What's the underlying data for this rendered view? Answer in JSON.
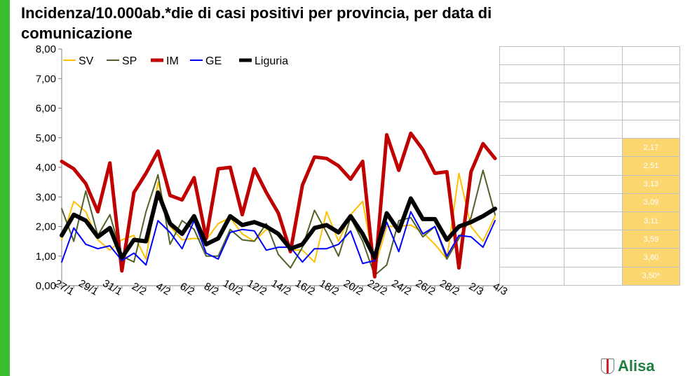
{
  "title": "Incidenza/10.000ab.*die di casi positivi per provincia, per data di comunicazione",
  "logo_text": "Alisa",
  "chart_data": {
    "type": "line",
    "title": "",
    "xlabel": "",
    "ylabel": "",
    "ylim": [
      0,
      8
    ],
    "yticks": [
      "0,00",
      "1,00",
      "2,00",
      "3,00",
      "4,00",
      "5,00",
      "6,00",
      "7,00",
      "8,00"
    ],
    "grid": false,
    "legend_position": "top-left",
    "x_tick_labels": [
      "27/1",
      "29/1",
      "31/1",
      "2/2",
      "4/2",
      "6/2",
      "8/2",
      "10/2",
      "12/2",
      "14/2",
      "16/2",
      "18/2",
      "20/2",
      "22/2",
      "24/2",
      "26/2",
      "28/2",
      "2/3",
      "4/3"
    ],
    "x": [
      "27/1",
      "28/1",
      "29/1",
      "30/1",
      "31/1",
      "1/2",
      "2/2",
      "3/2",
      "4/2",
      "5/2",
      "6/2",
      "7/2",
      "8/2",
      "9/2",
      "10/2",
      "11/2",
      "12/2",
      "13/2",
      "14/2",
      "15/2",
      "16/2",
      "17/2",
      "18/2",
      "19/2",
      "20/2",
      "21/2",
      "22/2",
      "23/2",
      "24/2",
      "25/2",
      "26/2",
      "27/2",
      "28/2",
      "1/3",
      "2/3",
      "3/3",
      "4/3"
    ],
    "series": [
      {
        "name": "SV",
        "color": "#ffc000",
        "width": 2,
        "values": [
          1.55,
          2.85,
          2.5,
          1.55,
          1.2,
          1.55,
          1.7,
          0.9,
          3.5,
          2.0,
          1.55,
          1.6,
          1.55,
          2.1,
          2.3,
          1.75,
          1.5,
          1.9,
          1.8,
          1.2,
          1.2,
          0.8,
          2.5,
          1.5,
          2.4,
          2.85,
          0.6,
          2.0,
          2.0,
          2.05,
          1.8,
          1.4,
          0.9,
          3.8,
          2.0,
          1.5,
          2.35
        ]
      },
      {
        "name": "SP",
        "color": "#4f6228",
        "width": 2,
        "values": [
          2.6,
          1.5,
          3.2,
          1.7,
          2.4,
          1.0,
          0.8,
          2.5,
          3.75,
          1.4,
          2.2,
          1.9,
          1.0,
          1.0,
          1.9,
          1.55,
          1.5,
          2.1,
          1.05,
          0.6,
          1.3,
          2.55,
          1.8,
          1.0,
          2.3,
          1.5,
          0.35,
          0.7,
          2.2,
          2.3,
          1.65,
          2.0,
          0.9,
          1.6,
          2.3,
          3.9,
          2.4
        ]
      },
      {
        "name": "IM",
        "color": "#c00000",
        "width": 5,
        "values": [
          4.2,
          3.95,
          3.45,
          2.5,
          4.15,
          0.5,
          3.15,
          3.8,
          4.55,
          3.05,
          2.9,
          3.65,
          1.6,
          3.95,
          4.0,
          2.4,
          3.95,
          3.15,
          2.45,
          1.15,
          3.4,
          4.35,
          4.3,
          4.05,
          3.6,
          4.2,
          0.3,
          5.1,
          3.9,
          5.15,
          4.6,
          3.8,
          3.85,
          0.6,
          3.85,
          4.8,
          4.3
        ]
      },
      {
        "name": "GE",
        "color": "#0000ff",
        "width": 2,
        "values": [
          0.8,
          1.95,
          1.4,
          1.25,
          1.35,
          0.85,
          1.1,
          0.7,
          2.2,
          1.8,
          1.25,
          2.2,
          1.1,
          0.9,
          1.8,
          1.9,
          1.85,
          1.2,
          1.3,
          1.3,
          0.8,
          1.25,
          1.25,
          1.4,
          1.85,
          0.75,
          0.85,
          2.15,
          1.15,
          2.5,
          1.75,
          2.0,
          1.0,
          1.7,
          1.65,
          1.3,
          2.2
        ]
      },
      {
        "name": "Liguria",
        "color": "#000000",
        "width": 6,
        "values": [
          1.7,
          2.4,
          2.2,
          1.65,
          1.95,
          0.95,
          1.55,
          1.5,
          3.15,
          2.1,
          1.75,
          2.35,
          1.4,
          1.6,
          2.35,
          2.05,
          2.15,
          2.0,
          1.75,
          1.25,
          1.4,
          1.95,
          2.05,
          1.8,
          2.35,
          1.75,
          0.95,
          2.45,
          1.85,
          2.95,
          2.25,
          2.25,
          1.55,
          2.0,
          2.15,
          2.35,
          2.6
        ]
      }
    ]
  },
  "side_table": {
    "rows": [
      [
        "",
        "",
        ""
      ],
      [
        "",
        "",
        ""
      ],
      [
        "",
        "",
        ""
      ],
      [
        "",
        "",
        ""
      ],
      [
        "",
        "",
        ""
      ],
      [
        "",
        "",
        "2,17"
      ],
      [
        "",
        "",
        "2,51"
      ],
      [
        "",
        "",
        "3,13"
      ],
      [
        "",
        "",
        "3,09"
      ],
      [
        "",
        "",
        "3,11"
      ],
      [
        "",
        "",
        "3,59"
      ],
      [
        "",
        "",
        "3,80"
      ],
      [
        "",
        "",
        "3,50*"
      ]
    ]
  }
}
